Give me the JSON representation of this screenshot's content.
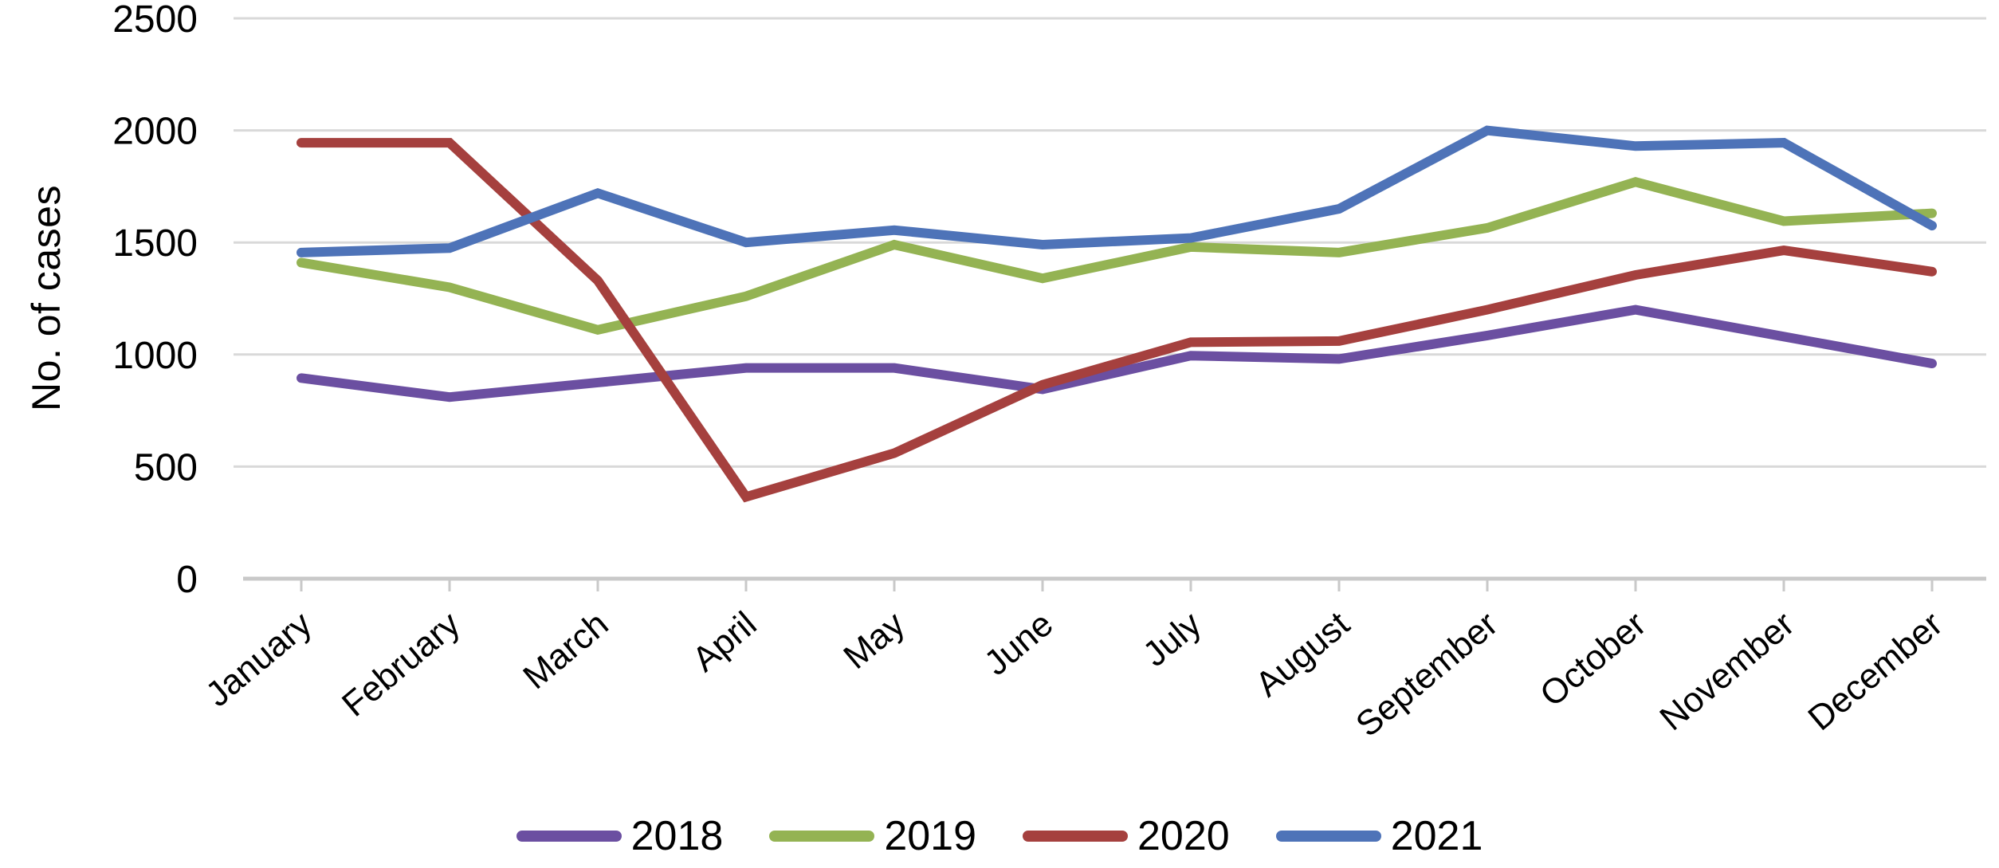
{
  "chart_data": {
    "type": "line",
    "title": "",
    "xlabel": "",
    "ylabel": "No. of cases",
    "ylim": [
      0,
      2500
    ],
    "yticks": [
      0,
      500,
      1000,
      1500,
      2000,
      2500
    ],
    "grid": "horizontal",
    "grid_color": "#D9D9D9",
    "axis_color": "#C9C9C9",
    "text_color": "#000000",
    "legend_position": "bottom",
    "categories": [
      "January",
      "February",
      "March",
      "April",
      "May",
      "June",
      "July",
      "August",
      "September",
      "October",
      "November",
      "December"
    ],
    "series": [
      {
        "name": "2018",
        "color": "#6B4FA1",
        "values": [
          895,
          810,
          875,
          940,
          940,
          845,
          995,
          980,
          1085,
          1200,
          1080,
          960
        ]
      },
      {
        "name": "2019",
        "color": "#94B353",
        "values": [
          1410,
          1300,
          1110,
          1260,
          1490,
          1340,
          1480,
          1455,
          1565,
          1770,
          1595,
          1630
        ]
      },
      {
        "name": "2020",
        "color": "#A5403E",
        "values": [
          1945,
          1945,
          1330,
          365,
          560,
          865,
          1055,
          1060,
          1200,
          1355,
          1465,
          1370
        ]
      },
      {
        "name": "2021",
        "color": "#4E73B8",
        "values": [
          1455,
          1475,
          1720,
          1500,
          1555,
          1490,
          1520,
          1650,
          2000,
          1930,
          1945,
          1575
        ]
      }
    ]
  }
}
